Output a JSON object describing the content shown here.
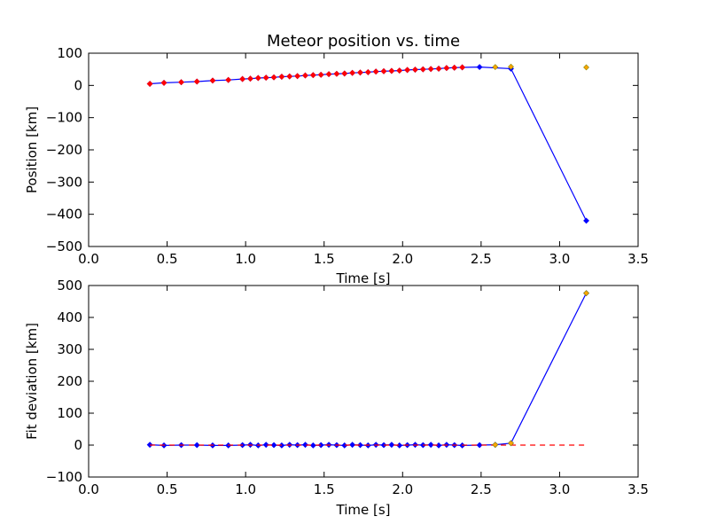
{
  "title": "Meteor position vs. time",
  "colors": {
    "fit_line": "#0000ff",
    "meas_points": "#ff0000",
    "zero_line": "#ff0000",
    "excluded_points": "#ffa500",
    "resid_points": "#0000ff"
  },
  "chart_data": [
    {
      "type": "line",
      "title": "Meteor position vs. time",
      "xlabel": "Time [s]",
      "ylabel": "Position [km]",
      "xlim": [
        0.0,
        3.5
      ],
      "ylim": [
        -500,
        100
      ],
      "xticks": [
        "0.0",
        "0.5",
        "1.0",
        "1.5",
        "2.0",
        "2.5",
        "3.0",
        "3.5"
      ],
      "yticks": [
        "−500",
        "−400",
        "−300",
        "−200",
        "−100",
        "0",
        "100"
      ],
      "grid": false,
      "series": [
        {
          "style": "line-with-markers",
          "color": "#0000ff",
          "x": [
            0.39,
            0.48,
            0.59,
            0.69,
            0.79,
            0.89,
            0.98,
            1.03,
            1.08,
            1.13,
            1.18,
            1.23,
            1.28,
            1.33,
            1.38,
            1.43,
            1.48,
            1.53,
            1.58,
            1.63,
            1.68,
            1.73,
            1.78,
            1.83,
            1.88,
            1.93,
            1.98,
            2.03,
            2.08,
            2.13,
            2.18,
            2.23,
            2.28,
            2.33,
            2.38,
            2.49,
            2.69,
            3.17
          ],
          "y": [
            5,
            8,
            10,
            12,
            15,
            17,
            20,
            21,
            23,
            24,
            25,
            27,
            28,
            29,
            31,
            32,
            33,
            35,
            36,
            37,
            39,
            40,
            41,
            43,
            44,
            45,
            46,
            48,
            49,
            50,
            51,
            52,
            54,
            55,
            56,
            57,
            52,
            -420
          ]
        },
        {
          "style": "markers",
          "color": "#ff0000",
          "x": [
            0.39,
            0.48,
            0.59,
            0.69,
            0.79,
            0.89,
            0.98,
            1.03,
            1.08,
            1.13,
            1.18,
            1.23,
            1.28,
            1.33,
            1.38,
            1.43,
            1.48,
            1.53,
            1.58,
            1.63,
            1.68,
            1.73,
            1.78,
            1.83,
            1.88,
            1.93,
            1.98,
            2.03,
            2.08,
            2.13,
            2.18,
            2.23,
            2.28,
            2.33,
            2.38
          ],
          "y": [
            5,
            8,
            10,
            12,
            15,
            17,
            20,
            21,
            23,
            24,
            25,
            27,
            28,
            29,
            31,
            32,
            33,
            35,
            36,
            37,
            39,
            40,
            41,
            43,
            44,
            45,
            46,
            48,
            49,
            50,
            51,
            52,
            54,
            55,
            56
          ]
        },
        {
          "style": "markers",
          "color": "#ffa500",
          "x": [
            2.59,
            2.69,
            3.17
          ],
          "y": [
            57,
            58,
            56
          ]
        }
      ]
    },
    {
      "type": "line",
      "xlabel": "Time [s]",
      "ylabel": "Fit deviation [km]",
      "xlim": [
        0.0,
        3.5
      ],
      "ylim": [
        -100,
        500
      ],
      "xticks": [
        "0.0",
        "0.5",
        "1.0",
        "1.5",
        "2.0",
        "2.5",
        "3.0",
        "3.5"
      ],
      "yticks": [
        "−100",
        "0",
        "100",
        "200",
        "300",
        "400",
        "500"
      ],
      "grid": false,
      "series": [
        {
          "style": "line-with-markers",
          "color": "#0000ff",
          "x": [
            0.39,
            0.48,
            0.59,
            0.69,
            0.79,
            0.89,
            0.98,
            1.03,
            1.08,
            1.13,
            1.18,
            1.23,
            1.28,
            1.33,
            1.38,
            1.43,
            1.48,
            1.53,
            1.58,
            1.63,
            1.68,
            1.73,
            1.78,
            1.83,
            1.88,
            1.93,
            1.98,
            2.03,
            2.08,
            2.13,
            2.18,
            2.23,
            2.28,
            2.33,
            2.38,
            2.49,
            2.59,
            2.69,
            3.17
          ],
          "y": [
            1,
            -1,
            0,
            0,
            -1,
            -1,
            0,
            1,
            -1,
            1,
            0,
            -1,
            1,
            0,
            1,
            -1,
            0,
            1,
            0,
            -1,
            1,
            0,
            -1,
            1,
            0,
            1,
            -1,
            0,
            1,
            0,
            1,
            -1,
            1,
            0,
            -1,
            0,
            1,
            6,
            476
          ]
        },
        {
          "style": "dashed",
          "color": "#ff0000",
          "x": [
            0.39,
            3.17
          ],
          "y": [
            0,
            0
          ]
        },
        {
          "style": "markers",
          "color": "#ffa500",
          "x": [
            2.59,
            2.69,
            3.17
          ],
          "y": [
            1,
            6,
            476
          ]
        }
      ]
    }
  ]
}
